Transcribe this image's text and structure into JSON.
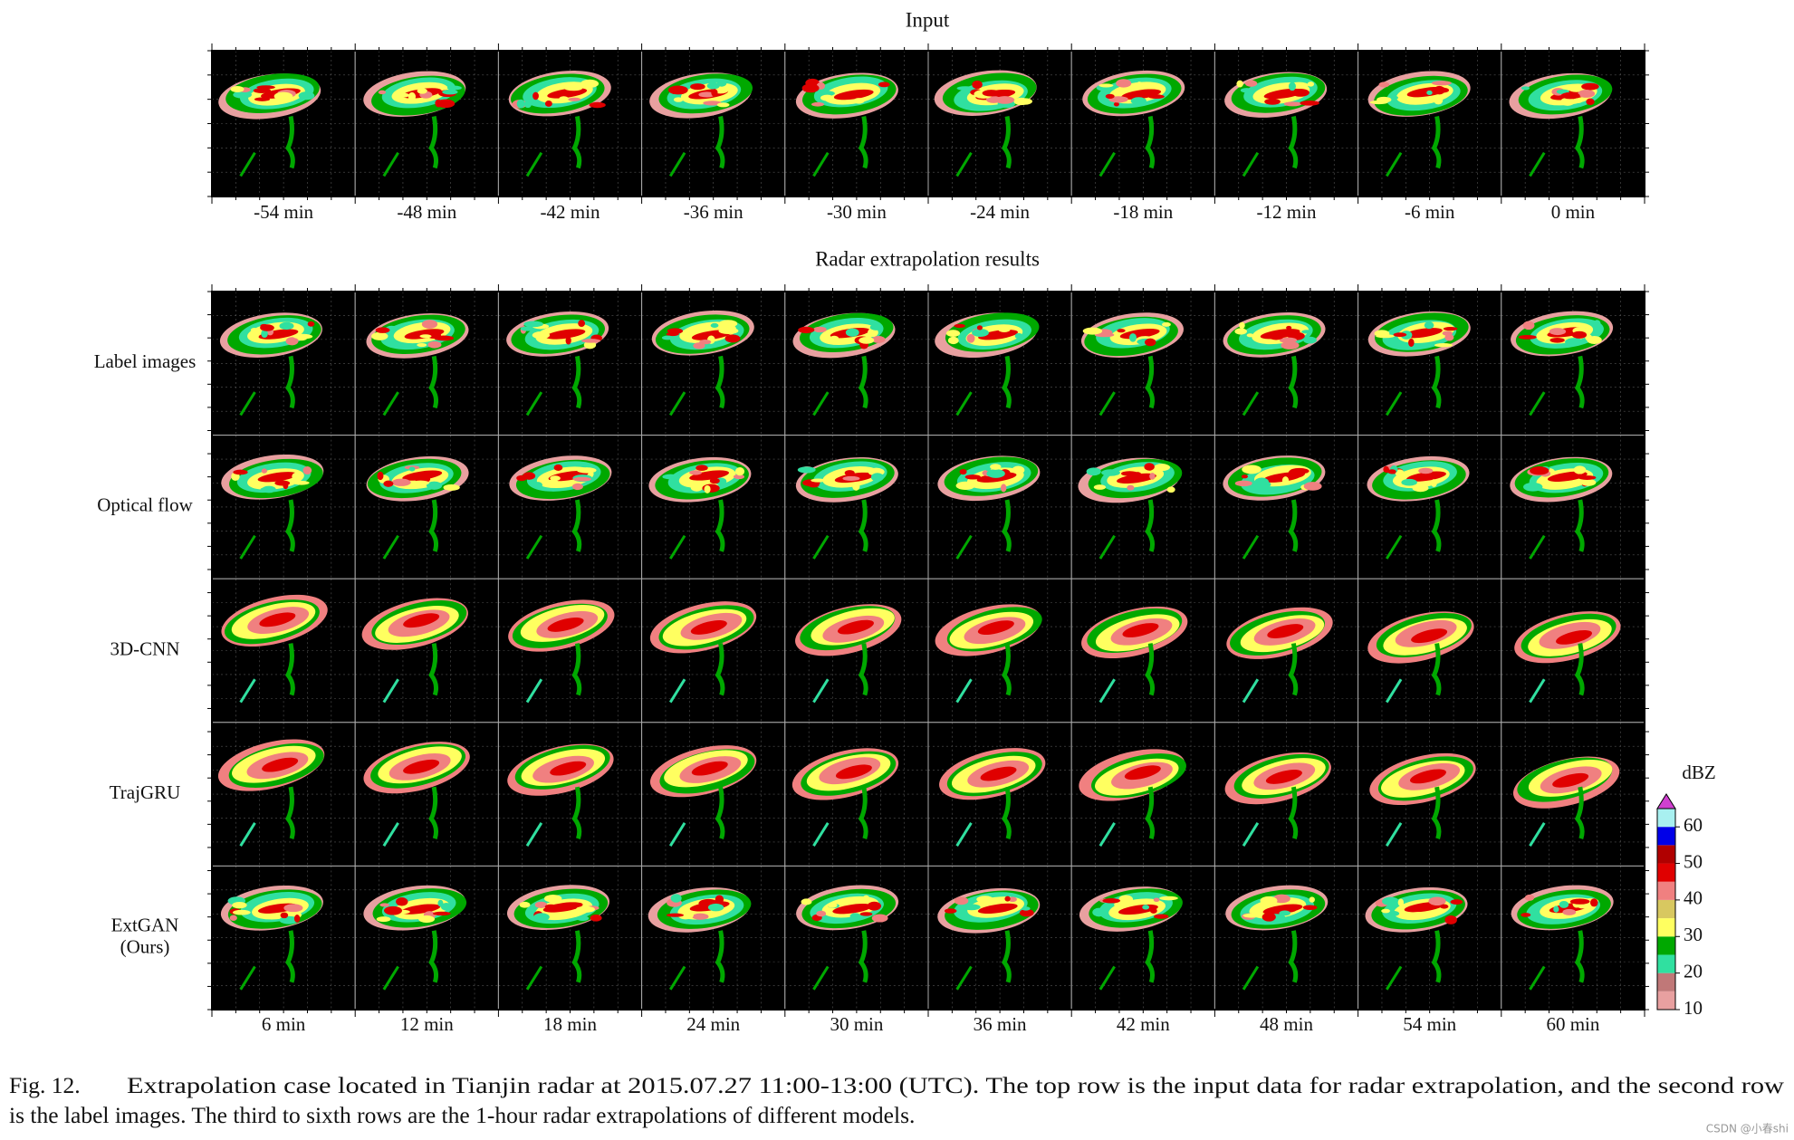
{
  "input": {
    "title": "Input",
    "times": [
      "-54 min",
      "-48 min",
      "-42 min",
      "-36 min",
      "-30 min",
      "-24 min",
      "-18 min",
      "-12 min",
      "-6 min",
      "0 min"
    ]
  },
  "results": {
    "title": "Radar extrapolation results",
    "rows": [
      {
        "lines": [
          "Label images"
        ]
      },
      {
        "lines": [
          "Optical flow"
        ]
      },
      {
        "lines": [
          "3D-CNN"
        ]
      },
      {
        "lines": [
          "TrajGRU"
        ]
      },
      {
        "lines": [
          "ExtGAN",
          "(Ours)"
        ]
      }
    ],
    "times": [
      "6 min",
      "12 min",
      "18 min",
      "24 min",
      "30 min",
      "36 min",
      "42 min",
      "48 min",
      "54 min",
      "60 min"
    ]
  },
  "colorbar": {
    "label": "dBZ",
    "ticks": [
      10,
      20,
      30,
      40,
      50,
      60
    ],
    "bins": [
      10,
      15,
      20,
      25,
      30,
      35,
      40,
      45,
      50,
      55,
      60,
      65
    ],
    "colors": [
      "#e8a0a0",
      "#c07878",
      "#30e0a0",
      "#00a800",
      "#ffff60",
      "#d8c860",
      "#f08080",
      "#e00000",
      "#b00000",
      "#0000e8",
      "#a8f0f0"
    ],
    "extend_color": "#d040d0"
  },
  "caption": {
    "label": "Fig. 12.",
    "lines": [
      "Extrapolation case located in Tianjin radar at 2015.07.27 11:00-13:00 (UTC). The top row is the input data for radar extrapolation, and the second row",
      "is the label images. The third to sixth rows are the 1-hour radar extrapolations of different models."
    ]
  },
  "watermark": "CSDN @小春shi"
}
